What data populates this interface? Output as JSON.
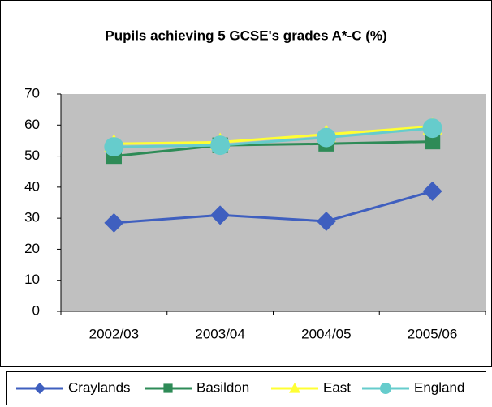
{
  "chart_data": {
    "type": "line",
    "title": "Pupils achieving 5 GCSE's grades A*-C (%)",
    "categories": [
      "2002/03",
      "2003/04",
      "2004/05",
      "2005/06"
    ],
    "series": [
      {
        "name": "Craylands",
        "color": "#3f5fbf",
        "marker": "diamond",
        "values": [
          28.5,
          31,
          29,
          38.7
        ]
      },
      {
        "name": "Basildon",
        "color": "#2e8b57",
        "marker": "square",
        "values": [
          50,
          53.5,
          54,
          54.7
        ]
      },
      {
        "name": "East",
        "color": "#ffff33",
        "marker": "triangle",
        "values": [
          54,
          54.5,
          57,
          59.5
        ]
      },
      {
        "name": "England",
        "color": "#66cccc",
        "marker": "circle",
        "values": [
          53,
          53.5,
          56,
          59
        ]
      }
    ],
    "ylim": [
      0,
      70
    ],
    "yticks": [
      0,
      10,
      20,
      30,
      40,
      50,
      60,
      70
    ],
    "plot_background": "#c0c0c0"
  }
}
